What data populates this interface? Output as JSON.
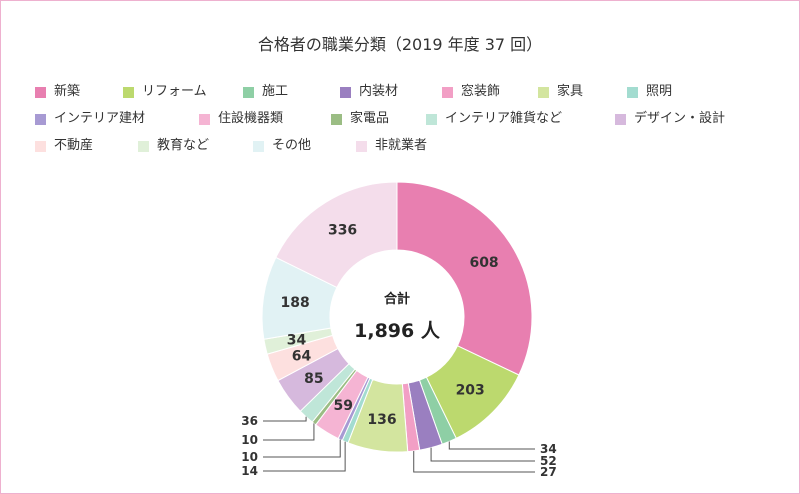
{
  "chart_data": {
    "type": "pie",
    "donut": true,
    "title": "合格者の職業分類（2019 年度 37 回）",
    "legend_position": "top",
    "categories": [
      "新築",
      "リフォーム",
      "施工",
      "内装材",
      "窓装飾",
      "家具",
      "照明",
      "インテリア建材",
      "住設機器類",
      "家電品",
      "インテリア雑貨など",
      "デザイン・設計",
      "不動産",
      "教育など",
      "その他",
      "非就業者"
    ],
    "values": [
      608,
      203,
      34,
      52,
      27,
      136,
      14,
      10,
      59,
      10,
      36,
      85,
      64,
      34,
      188,
      336
    ],
    "colors": [
      "#e87fb0",
      "#bcd96e",
      "#8ecfa5",
      "#9a7fc0",
      "#f29fc5",
      "#d3e59f",
      "#a3dcd0",
      "#a79ad3",
      "#f5b4d3",
      "#9bbd84",
      "#bfe6d8",
      "#d6b9dd",
      "#fde0df",
      "#e0f0d9",
      "#e1f2f4",
      "#f4ddeb"
    ],
    "total_label": "合計",
    "total": "1,896 人"
  },
  "theme": {
    "frame_border": "#eeb1cf",
    "text": "#333333",
    "background": "#ffffff"
  }
}
